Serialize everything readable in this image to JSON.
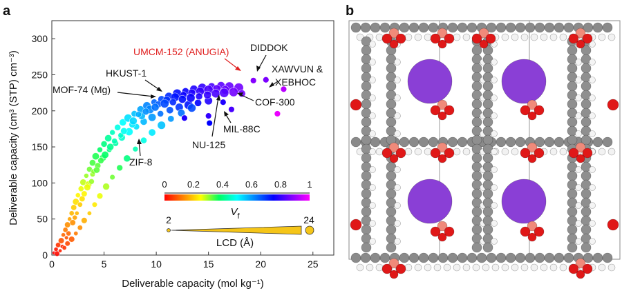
{
  "panels": [
    {
      "label": "a"
    },
    {
      "label": "b"
    }
  ],
  "chart_data": {
    "type": "scatter",
    "xlabel": "Deliverable capacity (mol kg⁻¹)",
    "ylabel": "Deliverable capacity (cm³ (STP) cm⁻³)",
    "xlim": [
      0,
      27
    ],
    "ylim": [
      0,
      325
    ],
    "x_ticks": [
      0,
      5,
      10,
      15,
      20,
      25
    ],
    "y_ticks": [
      0,
      50,
      100,
      150,
      200,
      250,
      300
    ],
    "colorbar": {
      "label": "V",
      "label_subscript": "f",
      "ticks": [
        "0",
        "0.2",
        "0.4",
        "0.6",
        "0.8",
        "1"
      ],
      "range": [
        0,
        1
      ],
      "colormap": [
        "#ff0000",
        "#ff8000",
        "#ffff00",
        "#00ff60",
        "#00ffff",
        "#0080ff",
        "#0000ff",
        "#8000ff",
        "#ff00ff"
      ]
    },
    "size_legend": {
      "label": "LCD (Å)",
      "min_label": "2",
      "max_label": "24",
      "fill": "#f5c518"
    },
    "annotations": [
      {
        "name": "umcm-152",
        "text": "UMCM-152 (ANUGIA)",
        "color": "#e02020",
        "x": 19.3,
        "y": 243
      },
      {
        "name": "diddok",
        "text": "DIDDOK",
        "color": "#111111",
        "x": 20.5,
        "y": 245
      },
      {
        "name": "xawvun",
        "text": "XAWVUN &",
        "color": "#111111",
        "x": 22.2,
        "y": 230
      },
      {
        "name": "xebhoc",
        "text": "XEBHOC",
        "color": "#111111",
        "x": 22.2,
        "y": 230
      },
      {
        "name": "hkust-1",
        "text": "HKUST-1",
        "color": "#111111",
        "x": 11.2,
        "y": 228
      },
      {
        "name": "mof-74",
        "text": "MOF-74 (Mg)",
        "color": "#111111",
        "x": 10.6,
        "y": 216
      },
      {
        "name": "cof-300",
        "text": "COF-300",
        "color": "#111111",
        "x": 18.6,
        "y": 221
      },
      {
        "name": "nu-125",
        "text": "NU-125",
        "color": "#111111",
        "x": 16.8,
        "y": 219
      },
      {
        "name": "mil-88c",
        "text": "MIL-88C",
        "color": "#111111",
        "x": 17.4,
        "y": 197
      },
      {
        "name": "zif-8",
        "text": "ZIF-8",
        "color": "#111111",
        "x": 8.9,
        "y": 155
      }
    ],
    "highlight_points": [
      {
        "x": 19.3,
        "y": 242,
        "vf": 0.88
      },
      {
        "x": 20.5,
        "y": 243,
        "vf": 0.87
      },
      {
        "x": 22.2,
        "y": 230,
        "vf": 0.93
      },
      {
        "x": 21.6,
        "y": 196,
        "vf": 0.98
      },
      {
        "x": 15.1,
        "y": 183,
        "vf": 0.75
      },
      {
        "x": 15.0,
        "y": 193,
        "vf": 0.8
      },
      {
        "x": 16.4,
        "y": 212,
        "vf": 0.78
      },
      {
        "x": 17.2,
        "y": 202,
        "vf": 0.82
      },
      {
        "x": 12.7,
        "y": 190,
        "vf": 0.78
      }
    ],
    "series": [
      {
        "points": [
          [
            0.2,
            3,
            0.0
          ],
          [
            0.4,
            8,
            0.02
          ],
          [
            0.6,
            14,
            0.05
          ],
          [
            0.9,
            20,
            0.08
          ],
          [
            1.1,
            28,
            0.1
          ],
          [
            1.3,
            35,
            0.12
          ],
          [
            1.5,
            42,
            0.14
          ],
          [
            1.7,
            50,
            0.16
          ],
          [
            1.9,
            58,
            0.18
          ],
          [
            2.1,
            66,
            0.2
          ],
          [
            2.3,
            74,
            0.22
          ],
          [
            2.5,
            83,
            0.24
          ],
          [
            2.8,
            92,
            0.26
          ],
          [
            3.0,
            101,
            0.28
          ],
          [
            3.3,
            110,
            0.3
          ],
          [
            3.6,
            119,
            0.32
          ],
          [
            3.9,
            128,
            0.34
          ],
          [
            4.2,
            137,
            0.36
          ],
          [
            4.6,
            146,
            0.38
          ],
          [
            5.0,
            154,
            0.4
          ],
          [
            5.4,
            162,
            0.42
          ],
          [
            5.8,
            170,
            0.45
          ],
          [
            6.3,
            177,
            0.48
          ],
          [
            6.8,
            184,
            0.5
          ],
          [
            7.3,
            190,
            0.53
          ],
          [
            7.9,
            196,
            0.56
          ],
          [
            8.5,
            202,
            0.59
          ],
          [
            9.1,
            207,
            0.62
          ],
          [
            9.8,
            212,
            0.65
          ],
          [
            10.5,
            216,
            0.68
          ],
          [
            11.2,
            220,
            0.71
          ],
          [
            12.0,
            224,
            0.74
          ],
          [
            12.8,
            227,
            0.76
          ],
          [
            13.6,
            230,
            0.78
          ],
          [
            14.4,
            232,
            0.8
          ],
          [
            15.3,
            234,
            0.82
          ],
          [
            16.2,
            235,
            0.84
          ],
          [
            17.0,
            234,
            0.85
          ],
          [
            17.9,
            232,
            0.86
          ],
          [
            1.0,
            12,
            0.04
          ],
          [
            1.6,
            30,
            0.1
          ],
          [
            2.0,
            45,
            0.14
          ],
          [
            2.4,
            58,
            0.18
          ],
          [
            2.7,
            70,
            0.2
          ],
          [
            3.1,
            85,
            0.24
          ],
          [
            3.5,
            98,
            0.27
          ],
          [
            3.9,
            112,
            0.3
          ],
          [
            4.4,
            124,
            0.33
          ],
          [
            4.9,
            135,
            0.36
          ],
          [
            5.5,
            146,
            0.4
          ],
          [
            6.1,
            155,
            0.43
          ],
          [
            6.7,
            163,
            0.46
          ],
          [
            7.4,
            171,
            0.5
          ],
          [
            8.1,
            178,
            0.53
          ],
          [
            8.8,
            185,
            0.57
          ],
          [
            9.6,
            191,
            0.6
          ],
          [
            10.4,
            196,
            0.64
          ],
          [
            11.3,
            201,
            0.67
          ],
          [
            12.2,
            205,
            0.7
          ],
          [
            13.1,
            208,
            0.73
          ],
          [
            14.0,
            211,
            0.75
          ],
          [
            15.0,
            214,
            0.78
          ],
          [
            0.5,
            2,
            0.01
          ],
          [
            0.8,
            6,
            0.03
          ],
          [
            1.2,
            10,
            0.05
          ],
          [
            1.5,
            16,
            0.07
          ],
          [
            1.9,
            22,
            0.09
          ],
          [
            2.3,
            30,
            0.12
          ],
          [
            2.7,
            38,
            0.14
          ],
          [
            3.1,
            48,
            0.17
          ],
          [
            3.6,
            58,
            0.2
          ],
          [
            4.1,
            70,
            0.23
          ],
          [
            4.6,
            82,
            0.26
          ],
          [
            5.2,
            95,
            0.29
          ],
          [
            5.8,
            108,
            0.32
          ],
          [
            6.5,
            121,
            0.36
          ],
          [
            7.2,
            134,
            0.4
          ],
          [
            8.0,
            147,
            0.44
          ],
          [
            8.8,
            159,
            0.48
          ],
          [
            9.6,
            170,
            0.52
          ],
          [
            10.5,
            180,
            0.56
          ],
          [
            11.4,
            189,
            0.6
          ],
          [
            12.4,
            197,
            0.64
          ],
          [
            13.4,
            204,
            0.68
          ],
          [
            1.4,
            24,
            0.08
          ],
          [
            2.2,
            52,
            0.16
          ],
          [
            2.9,
            78,
            0.22
          ],
          [
            3.4,
            94,
            0.26
          ],
          [
            4.0,
            116,
            0.31
          ],
          [
            4.7,
            131,
            0.35
          ],
          [
            5.6,
            150,
            0.41
          ],
          [
            6.6,
            166,
            0.46
          ],
          [
            7.7,
            181,
            0.52
          ],
          [
            8.6,
            193,
            0.57
          ],
          [
            9.4,
            202,
            0.62
          ],
          [
            10.2,
            209,
            0.66
          ],
          [
            11.0,
            215,
            0.7
          ],
          [
            11.8,
            219,
            0.73
          ],
          [
            12.6,
            222,
            0.76
          ],
          [
            13.4,
            225,
            0.78
          ],
          [
            14.2,
            227,
            0.8
          ],
          [
            15.0,
            229,
            0.82
          ],
          [
            15.8,
            231,
            0.84
          ],
          [
            16.6,
            229,
            0.85
          ],
          [
            17.4,
            226,
            0.86
          ],
          [
            18.2,
            224,
            0.86
          ],
          [
            3.8,
            102,
            0.3
          ],
          [
            4.3,
            118,
            0.33
          ],
          [
            5.1,
            139,
            0.38
          ],
          [
            6.0,
            158,
            0.44
          ],
          [
            6.9,
            172,
            0.49
          ],
          [
            7.8,
            186,
            0.54
          ],
          [
            8.3,
            195,
            0.58
          ],
          [
            9.0,
            199,
            0.61
          ],
          [
            9.9,
            205,
            0.64
          ],
          [
            10.8,
            210,
            0.68
          ],
          [
            11.6,
            212,
            0.71
          ],
          [
            12.5,
            216,
            0.74
          ],
          [
            13.3,
            218,
            0.76
          ],
          [
            14.1,
            220,
            0.78
          ],
          [
            14.9,
            222,
            0.8
          ],
          [
            15.7,
            224,
            0.82
          ],
          [
            16.5,
            225,
            0.83
          ]
        ]
      }
    ]
  }
}
